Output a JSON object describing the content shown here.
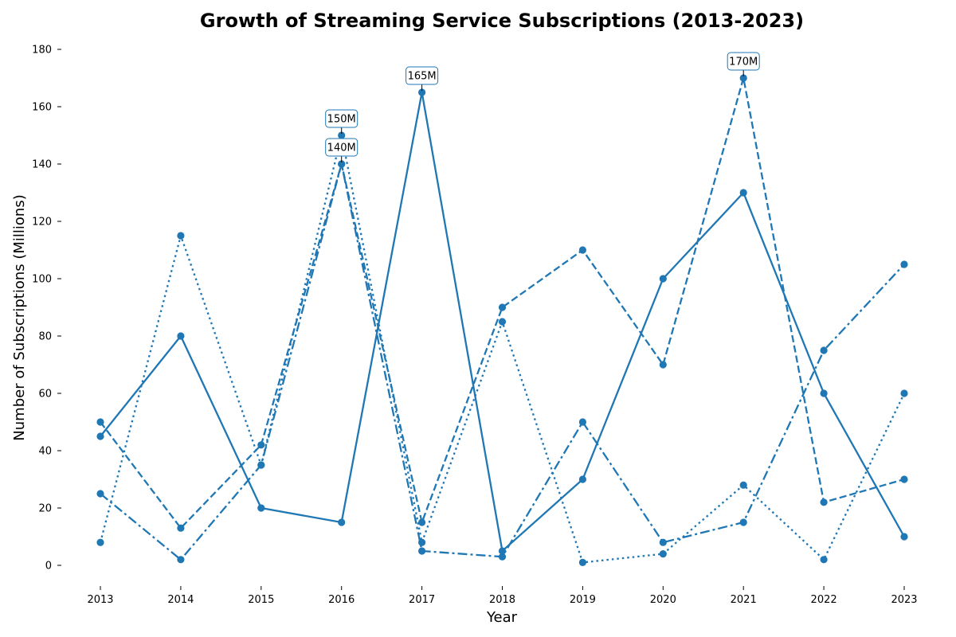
{
  "chart_data": {
    "type": "line",
    "title": "Growth of Streaming Service Subscriptions (2013-2023)",
    "xlabel": "Year",
    "ylabel": "Number of Subscriptions (Millions)",
    "categories": [
      "2013",
      "2014",
      "2015",
      "2016",
      "2017",
      "2018",
      "2019",
      "2020",
      "2021",
      "2022",
      "2023"
    ],
    "ylim": [
      -8,
      185
    ],
    "yticks": [
      0,
      20,
      40,
      60,
      80,
      100,
      120,
      140,
      160,
      180
    ],
    "grid": false,
    "color": "#1f77b4",
    "series": [
      {
        "style": "solid",
        "values": [
          45,
          80,
          20,
          15,
          165,
          5,
          30,
          100,
          130,
          60,
          10
        ]
      },
      {
        "style": "dashed",
        "values": [
          50,
          13,
          42,
          140,
          15,
          90,
          110,
          70,
          170,
          22,
          30
        ]
      },
      {
        "style": "dotted",
        "values": [
          8,
          115,
          35,
          150,
          8,
          85,
          1,
          4,
          28,
          2,
          60
        ]
      },
      {
        "style": "dashdot",
        "values": [
          25,
          2,
          35,
          140,
          5,
          3,
          50,
          8,
          15,
          75,
          105
        ]
      }
    ],
    "annotations": [
      {
        "x": "2016",
        "y": 150,
        "text": "150M"
      },
      {
        "x": "2016",
        "y": 140,
        "text": "140M"
      },
      {
        "x": "2017",
        "y": 165,
        "text": "165M"
      },
      {
        "x": "2021",
        "y": 170,
        "text": "170M"
      }
    ]
  }
}
